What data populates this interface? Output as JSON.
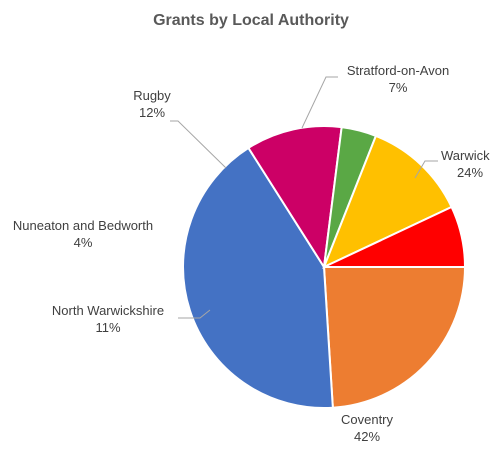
{
  "chart_data": {
    "type": "pie",
    "title": "Grants by Local Authority",
    "slices": [
      {
        "label": "Warwick",
        "value": 24,
        "percent_label": "24%",
        "color": "#ed7d31"
      },
      {
        "label": "Coventry",
        "value": 42,
        "percent_label": "42%",
        "color": "#4472c4"
      },
      {
        "label": "North Warwickshire",
        "value": 11,
        "percent_label": "11%",
        "color": "#cc0066"
      },
      {
        "label": "Nuneaton and Bedworth",
        "value": 4,
        "percent_label": "4%",
        "color": "#5aa845"
      },
      {
        "label": "Rugby",
        "value": 12,
        "percent_label": "12%",
        "color": "#ffc000"
      },
      {
        "label": "Stratford-on-Avon",
        "value": 7,
        "percent_label": "7%",
        "color": "#ff0000"
      }
    ],
    "start_angle_deg": 0,
    "direction": "clockwise",
    "legend": "none"
  }
}
